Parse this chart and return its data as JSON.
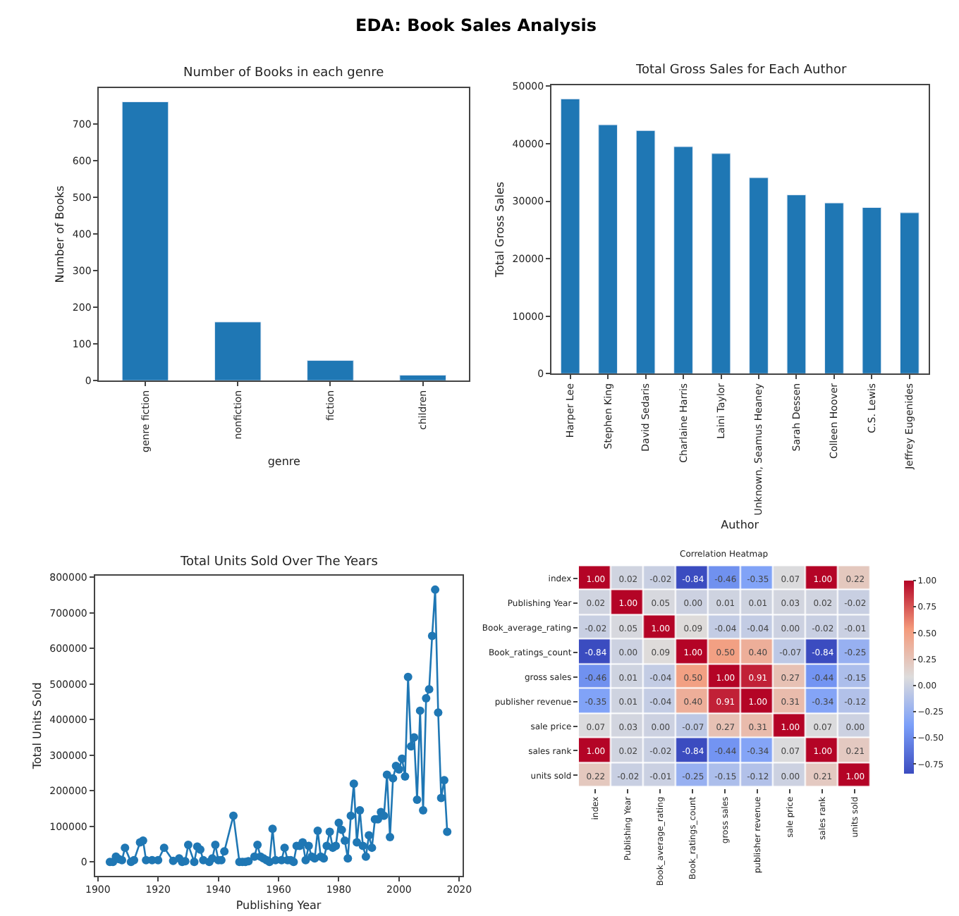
{
  "chart_data": [
    {
      "type": "bar",
      "title": "Number of Books in each genre",
      "annotations": [
        "EDA: Book Sales Analysis"
      ],
      "xlabel": "genre",
      "ylabel": "Number of Books",
      "categories": [
        "genre fiction",
        "nonfiction",
        "fiction",
        "children"
      ],
      "values": [
        760,
        160,
        55,
        15
      ],
      "color": "#1f77b4",
      "ylim": [
        0,
        798
      ],
      "yticks": [
        0,
        100,
        200,
        300,
        400,
        500,
        600,
        700
      ],
      "grid": false,
      "legend": false
    },
    {
      "type": "bar",
      "title": "Total Gross Sales for Each Author",
      "xlabel": "Author",
      "ylabel": "Total Gross Sales",
      "categories": [
        "Harper Lee",
        "Stephen King",
        "David Sedaris",
        "Charlaine Harris",
        "Laini Taylor",
        "Unknown, Seamus Heaney",
        "Sarah Dessen",
        "Colleen Hoover",
        "C.S. Lewis",
        "Jeffrey Eugenides"
      ],
      "values": [
        47800,
        43300,
        42300,
        39500,
        38300,
        34100,
        31100,
        29700,
        28900,
        28000
      ],
      "color": "#1f77b4",
      "ylim": [
        0,
        50200
      ],
      "yticks": [
        0,
        10000,
        20000,
        30000,
        40000,
        50000
      ],
      "grid": false,
      "legend": false
    },
    {
      "type": "line",
      "title": "Total Units Sold Over The Years",
      "xlabel": "Publishing Year",
      "ylabel": "Total Units Sold",
      "color": "#1f77b4",
      "marker": "circle",
      "line_style": "solid",
      "grid": false,
      "legend": false,
      "x": [
        1904,
        1905,
        1906,
        1907,
        1908,
        1909,
        1911,
        1912,
        1914,
        1915,
        1916,
        1918,
        1920,
        1922,
        1925,
        1927,
        1928,
        1929,
        1930,
        1932,
        1933,
        1934,
        1935,
        1937,
        1938,
        1939,
        1940,
        1941,
        1942,
        1945,
        1947,
        1948,
        1949,
        1950,
        1952,
        1953,
        1954,
        1955,
        1956,
        1957,
        1958,
        1959,
        1961,
        1962,
        1963,
        1964,
        1965,
        1966,
        1967,
        1968,
        1969,
        1970,
        1971,
        1972,
        1973,
        1974,
        1975,
        1976,
        1977,
        1978,
        1979,
        1980,
        1981,
        1982,
        1983,
        1984,
        1985,
        1986,
        1987,
        1988,
        1989,
        1990,
        1991,
        1992,
        1993,
        1994,
        1995,
        1996,
        1997,
        1998,
        1999,
        2000,
        2001,
        2002,
        2003,
        2004,
        2005,
        2006,
        2007,
        2008,
        2009,
        2010,
        2011,
        2012,
        2013,
        2014,
        2015,
        2016
      ],
      "values": [
        0,
        0,
        15000,
        8000,
        5000,
        40000,
        0,
        5000,
        55000,
        60000,
        5000,
        5000,
        5000,
        40000,
        3000,
        10000,
        0,
        2000,
        48000,
        0,
        43000,
        35000,
        5000,
        0,
        10000,
        48000,
        5000,
        5000,
        30000,
        130000,
        0,
        0,
        0,
        2000,
        15000,
        48000,
        15000,
        10000,
        5000,
        0,
        93000,
        5000,
        5000,
        40000,
        5000,
        5000,
        0,
        45000,
        45000,
        55000,
        5000,
        45000,
        15000,
        10000,
        88000,
        15000,
        10000,
        45000,
        85000,
        40000,
        45000,
        110000,
        90000,
        60000,
        10000,
        130000,
        220000,
        55000,
        145000,
        45000,
        15000,
        75000,
        40000,
        120000,
        120000,
        140000,
        130000,
        245000,
        70000,
        235000,
        270000,
        260000,
        290000,
        240000,
        520000,
        325000,
        350000,
        175000,
        425000,
        145000,
        460000,
        485000,
        635000,
        765000,
        420000,
        180000,
        230000,
        85000
      ],
      "xlim": [
        1899,
        2021
      ],
      "xticks": [
        1900,
        1920,
        1940,
        1960,
        1980,
        2000,
        2020
      ],
      "ylim": [
        -38000,
        804000
      ],
      "yticks": [
        0,
        100000,
        200000,
        300000,
        400000,
        500000,
        600000,
        700000,
        800000
      ]
    },
    {
      "type": "heatmap",
      "title": "Correlation Heatmap",
      "cell_labels": [
        [
          "1.00",
          "0.02",
          "-0.02",
          "-0.84",
          "-0.46",
          "-0.35",
          "0.07",
          "1.00",
          "0.22"
        ],
        [
          "0.02",
          "1.00",
          "0.05",
          "0.00",
          "0.01",
          "0.01",
          "0.03",
          "0.02",
          "-0.02"
        ],
        [
          "-0.02",
          "0.05",
          "1.00",
          "0.09",
          "-0.04",
          "-0.04",
          "0.00",
          "-0.02",
          "-0.01"
        ],
        [
          "-0.84",
          "0.00",
          "0.09",
          "1.00",
          "0.50",
          "0.40",
          "-0.07",
          "-0.84",
          "-0.25"
        ],
        [
          "-0.46",
          "0.01",
          "-0.04",
          "0.50",
          "1.00",
          "0.91",
          "0.27",
          "-0.44",
          "-0.15"
        ],
        [
          "-0.35",
          "0.01",
          "-0.04",
          "0.40",
          "0.91",
          "1.00",
          "0.31",
          "-0.34",
          "-0.12"
        ],
        [
          "0.07",
          "0.03",
          "0.00",
          "-0.07",
          "0.27",
          "0.31",
          "1.00",
          "0.07",
          "0.00"
        ],
        [
          "1.00",
          "0.02",
          "-0.02",
          "-0.84",
          "-0.44",
          "-0.34",
          "0.07",
          "1.00",
          "0.21"
        ],
        [
          "0.22",
          "-0.02",
          "-0.01",
          "-0.25",
          "-0.15",
          "-0.12",
          "0.00",
          "0.21",
          "1.00"
        ]
      ],
      "categories": [
        "index",
        "Publishing Year",
        "Book_average_rating",
        "Book_ratings_count",
        "gross sales",
        "publisher revenue",
        "sale price",
        "sales rank",
        "units sold"
      ],
      "y_categories": [
        "index",
        "Publishing Year",
        "Book_average_rating",
        "Book_ratings_count",
        "gross sales",
        "publisher revenue",
        "sale price",
        "sales rank",
        "units sold"
      ],
      "cells": [
        [
          1.0,
          0.02,
          -0.02,
          -0.84,
          -0.46,
          -0.35,
          0.07,
          1.0,
          0.22
        ],
        [
          0.02,
          1.0,
          0.05,
          0.0,
          0.01,
          0.01,
          0.03,
          0.02,
          -0.02
        ],
        [
          -0.02,
          0.05,
          1.0,
          0.09,
          -0.04,
          -0.04,
          0.0,
          -0.02,
          -0.01
        ],
        [
          -0.84,
          0.0,
          0.09,
          1.0,
          0.5,
          0.4,
          -0.07,
          -0.84,
          -0.25
        ],
        [
          -0.46,
          0.01,
          -0.04,
          0.5,
          1.0,
          0.91,
          0.27,
          -0.44,
          -0.15
        ],
        [
          -0.35,
          0.01,
          -0.04,
          0.4,
          0.91,
          1.0,
          0.31,
          -0.34,
          -0.12
        ],
        [
          0.07,
          0.03,
          0.0,
          -0.07,
          0.27,
          0.31,
          1.0,
          0.07,
          0.0
        ],
        [
          1.0,
          0.02,
          -0.02,
          -0.84,
          -0.44,
          -0.34,
          0.07,
          1.0,
          0.21
        ],
        [
          0.22,
          -0.02,
          -0.01,
          -0.25,
          -0.15,
          -0.12,
          0.0,
          0.21,
          1.0
        ]
      ],
      "clim": [
        -0.84,
        1.0
      ],
      "cticks": [
        {
          "value": -0.75,
          "label": "−0.75"
        },
        {
          "value": -0.5,
          "label": "−0.50"
        },
        {
          "value": -0.25,
          "label": "−0.25"
        },
        {
          "value": 0,
          "label": "0.00"
        },
        {
          "value": 0.25,
          "label": "0.25"
        },
        {
          "value": 0.5,
          "label": "0.50"
        },
        {
          "value": 0.75,
          "label": "0.75"
        },
        {
          "value": 1.0,
          "label": "1.00"
        }
      ]
    }
  ]
}
